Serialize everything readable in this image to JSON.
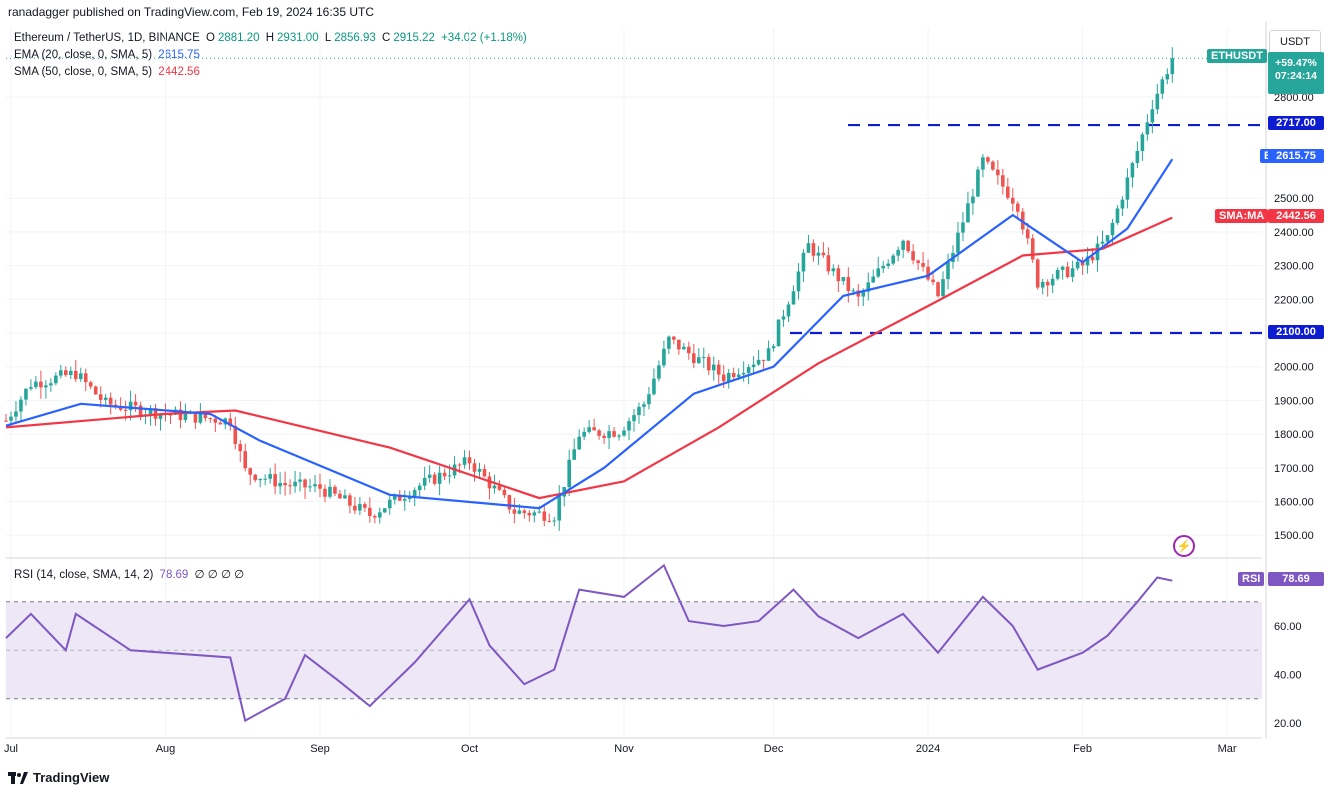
{
  "published_by": "ranadagger published on TradingView.com, Feb 19, 2024 16:35 UTC",
  "symbol_line": {
    "title": "Ethereum / TetherUS, 1D, BINANCE",
    "o_label": "O",
    "o": "2881.20",
    "h_label": "H",
    "h": "2931.00",
    "l_label": "L",
    "l": "2856.93",
    "c_label": "C",
    "c": "2915.22",
    "change": "+34.02 (+1.18%)"
  },
  "ema_legend": {
    "label": "EMA (20, close, 0, SMA, 5)",
    "value": "2615.75",
    "color": "#2962ff"
  },
  "sma_legend": {
    "label": "SMA (50, close, 0, SMA, 5)",
    "value": "2442.56",
    "color": "#f23645"
  },
  "rsi_legend": {
    "label": "RSI (14, close, SMA, 14, 2)",
    "value": "78.69",
    "extras": "∅ ∅ ∅ ∅",
    "color": "#7e57c2"
  },
  "currency_button": "USDT",
  "price_tags": {
    "symbol": "ETHUSDT",
    "change_pct": "+59.47%",
    "countdown": "07:24:14",
    "level_high": "2717.00",
    "level_low": "2100.00",
    "ema_label": "EMA",
    "ema_value": "2615.75",
    "sma_label": "SMA:MA",
    "sma_value": "2442.56",
    "rsi_label": "RSI",
    "rsi_value": "78.69"
  },
  "footer_brand": "TradingView",
  "colors": {
    "up": "#26a69a",
    "down": "#ef5350",
    "ema": "#2962ff",
    "sma": "#f23645",
    "rsi": "#7e57c2",
    "level": "#0d1bd1",
    "rsi_band": "#ede7f6"
  },
  "chart_data": [
    {
      "type": "candlestick",
      "title": "Ethereum / TetherUS, 1D, BINANCE",
      "x_ticks": [
        "Jul",
        "Aug",
        "Sep",
        "Oct",
        "Nov",
        "Dec",
        "2024",
        "Feb",
        "Mar"
      ],
      "y_ticks": [
        "1500.00",
        "1600.00",
        "1700.00",
        "1800.00",
        "1900.00",
        "2000.00",
        "2100.00",
        "2200.00",
        "2300.00",
        "2400.00",
        "2500.00",
        "2800.00"
      ],
      "ylim": [
        1420,
        2960
      ],
      "horizontal_levels": [
        2717.0,
        2100.0
      ],
      "anchors": [
        {
          "date": "2023-06-30",
          "price": 1840
        },
        {
          "date": "2023-07-05",
          "price": 1950
        },
        {
          "date": "2023-07-14",
          "price": 1980
        },
        {
          "date": "2023-07-20",
          "price": 1890
        },
        {
          "date": "2023-08-01",
          "price": 1860
        },
        {
          "date": "2023-08-14",
          "price": 1840
        },
        {
          "date": "2023-08-17",
          "price": 1690
        },
        {
          "date": "2023-08-25",
          "price": 1650
        },
        {
          "date": "2023-09-01",
          "price": 1640
        },
        {
          "date": "2023-09-11",
          "price": 1560
        },
        {
          "date": "2023-09-20",
          "price": 1640
        },
        {
          "date": "2023-10-01",
          "price": 1720
        },
        {
          "date": "2023-10-10",
          "price": 1570
        },
        {
          "date": "2023-10-18",
          "price": 1560
        },
        {
          "date": "2023-10-23",
          "price": 1800
        },
        {
          "date": "2023-10-31",
          "price": 1810
        },
        {
          "date": "2023-11-05",
          "price": 1890
        },
        {
          "date": "2023-11-10",
          "price": 2080
        },
        {
          "date": "2023-11-21",
          "price": 1970
        },
        {
          "date": "2023-11-30",
          "price": 2040
        },
        {
          "date": "2023-12-08",
          "price": 2360
        },
        {
          "date": "2023-12-18",
          "price": 2200
        },
        {
          "date": "2023-12-27",
          "price": 2380
        },
        {
          "date": "2024-01-03",
          "price": 2210
        },
        {
          "date": "2024-01-12",
          "price": 2610
        },
        {
          "date": "2024-01-19",
          "price": 2480
        },
        {
          "date": "2024-01-23",
          "price": 2250
        },
        {
          "date": "2024-02-01",
          "price": 2300
        },
        {
          "date": "2024-02-06",
          "price": 2380
        },
        {
          "date": "2024-02-12",
          "price": 2640
        },
        {
          "date": "2024-02-15",
          "price": 2780
        },
        {
          "date": "2024-02-19",
          "price": 2915.22
        }
      ],
      "ema20": [
        {
          "date": "2023-06-30",
          "value": 1825
        },
        {
          "date": "2023-07-15",
          "value": 1890
        },
        {
          "date": "2023-08-10",
          "value": 1860
        },
        {
          "date": "2023-08-20",
          "value": 1780
        },
        {
          "date": "2023-09-15",
          "value": 1620
        },
        {
          "date": "2023-10-15",
          "value": 1580
        },
        {
          "date": "2023-10-28",
          "value": 1700
        },
        {
          "date": "2023-11-15",
          "value": 1920
        },
        {
          "date": "2023-12-01",
          "value": 2000
        },
        {
          "date": "2023-12-15",
          "value": 2210
        },
        {
          "date": "2024-01-01",
          "value": 2270
        },
        {
          "date": "2024-01-18",
          "value": 2450
        },
        {
          "date": "2024-02-01",
          "value": 2310
        },
        {
          "date": "2024-02-10",
          "value": 2410
        },
        {
          "date": "2024-02-19",
          "value": 2615.75
        }
      ],
      "sma50": [
        {
          "date": "2023-06-30",
          "value": 1820
        },
        {
          "date": "2023-08-01",
          "value": 1860
        },
        {
          "date": "2023-08-15",
          "value": 1870
        },
        {
          "date": "2023-09-15",
          "value": 1760
        },
        {
          "date": "2023-10-15",
          "value": 1610
        },
        {
          "date": "2023-11-01",
          "value": 1660
        },
        {
          "date": "2023-11-20",
          "value": 1820
        },
        {
          "date": "2023-12-10",
          "value": 2010
        },
        {
          "date": "2024-01-01",
          "value": 2180
        },
        {
          "date": "2024-01-20",
          "value": 2330
        },
        {
          "date": "2024-02-05",
          "value": 2350
        },
        {
          "date": "2024-02-19",
          "value": 2442.56
        }
      ]
    },
    {
      "type": "line",
      "title": "RSI (14, close, SMA, 14, 2)",
      "y_ticks": [
        "20.00",
        "40.00",
        "60.00"
      ],
      "ylim": [
        10,
        95
      ],
      "bands": [
        30,
        50,
        70
      ],
      "series": [
        {
          "date": "2023-06-30",
          "value": 55
        },
        {
          "date": "2023-07-05",
          "value": 65
        },
        {
          "date": "2023-07-12",
          "value": 50
        },
        {
          "date": "2023-07-14",
          "value": 65
        },
        {
          "date": "2023-07-25",
          "value": 50
        },
        {
          "date": "2023-08-14",
          "value": 47
        },
        {
          "date": "2023-08-17",
          "value": 21
        },
        {
          "date": "2023-08-25",
          "value": 30
        },
        {
          "date": "2023-08-29",
          "value": 48
        },
        {
          "date": "2023-09-05",
          "value": 37
        },
        {
          "date": "2023-09-11",
          "value": 27
        },
        {
          "date": "2023-09-20",
          "value": 45
        },
        {
          "date": "2023-10-01",
          "value": 71
        },
        {
          "date": "2023-10-05",
          "value": 52
        },
        {
          "date": "2023-10-12",
          "value": 36
        },
        {
          "date": "2023-10-18",
          "value": 42
        },
        {
          "date": "2023-10-23",
          "value": 75
        },
        {
          "date": "2023-11-01",
          "value": 72
        },
        {
          "date": "2023-11-09",
          "value": 85
        },
        {
          "date": "2023-11-14",
          "value": 62
        },
        {
          "date": "2023-11-21",
          "value": 60
        },
        {
          "date": "2023-11-28",
          "value": 62
        },
        {
          "date": "2023-12-05",
          "value": 75
        },
        {
          "date": "2023-12-10",
          "value": 64
        },
        {
          "date": "2023-12-18",
          "value": 55
        },
        {
          "date": "2023-12-27",
          "value": 65
        },
        {
          "date": "2024-01-03",
          "value": 49
        },
        {
          "date": "2024-01-12",
          "value": 72
        },
        {
          "date": "2024-01-18",
          "value": 60
        },
        {
          "date": "2024-01-23",
          "value": 42
        },
        {
          "date": "2024-02-01",
          "value": 49
        },
        {
          "date": "2024-02-06",
          "value": 56
        },
        {
          "date": "2024-02-12",
          "value": 70
        },
        {
          "date": "2024-02-16",
          "value": 80
        },
        {
          "date": "2024-02-19",
          "value": 78.69
        }
      ]
    }
  ]
}
